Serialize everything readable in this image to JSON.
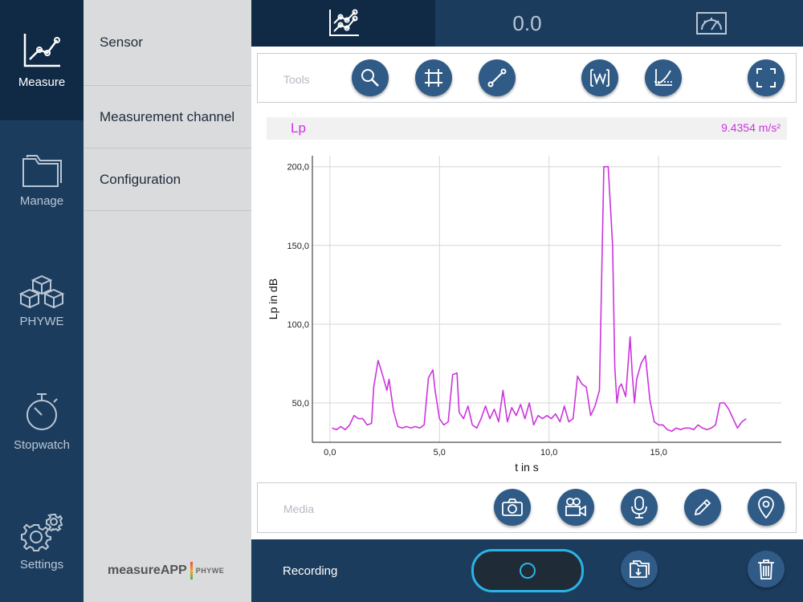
{
  "nav": {
    "items": [
      {
        "label": "Measure",
        "icon": "chart-line-icon",
        "active": true
      },
      {
        "label": "Manage",
        "icon": "folder-icon"
      },
      {
        "label": "PHYWE",
        "icon": "cubes-icon"
      },
      {
        "label": "Stopwatch",
        "icon": "stopwatch-icon"
      },
      {
        "label": "Settings",
        "icon": "gears-icon"
      }
    ]
  },
  "submenu": {
    "items": [
      "Sensor",
      "Measurement channel",
      "Configuration"
    ],
    "brand": "measureAPP",
    "brand_sub": "PHYWE"
  },
  "top_tabs": {
    "graph_icon": "graph-tab-icon",
    "value_display": "0.0",
    "gauge_icon": "gauge-tab-icon"
  },
  "tools": {
    "label": "Tools",
    "buttons": [
      "zoom-icon",
      "crop-icon",
      "line-tool-icon",
      "wave-fit-icon",
      "axes-icon",
      "fullscreen-icon"
    ]
  },
  "channel": {
    "name": "Lp",
    "value": "9.4354 m/s²",
    "color": "#cc33dd"
  },
  "chart_data": {
    "type": "line",
    "xlabel": "t in s",
    "ylabel": "Lp in dB",
    "xlim": [
      -0.8,
      20.6
    ],
    "ylim": [
      25,
      207
    ],
    "xticks": [
      0,
      5,
      10,
      15
    ],
    "xtick_labels": [
      "0,0",
      "5,0",
      "10,0",
      "15,0"
    ],
    "yticks": [
      50,
      100,
      150,
      200
    ],
    "ytick_labels": [
      "50,0",
      "100,0",
      "150,0",
      "200,0"
    ],
    "grid": true,
    "series": [
      {
        "color": "#cc33dd",
        "x": [
          0.1,
          0.3,
          0.5,
          0.7,
          0.9,
          1.1,
          1.3,
          1.5,
          1.7,
          1.9,
          2.0,
          2.2,
          2.4,
          2.6,
          2.7,
          2.9,
          3.1,
          3.3,
          3.5,
          3.7,
          3.9,
          4.1,
          4.3,
          4.5,
          4.7,
          4.8,
          5.0,
          5.2,
          5.4,
          5.6,
          5.8,
          5.9,
          6.1,
          6.3,
          6.5,
          6.7,
          6.9,
          7.1,
          7.3,
          7.5,
          7.7,
          7.9,
          8.1,
          8.3,
          8.5,
          8.7,
          8.9,
          9.1,
          9.3,
          9.5,
          9.7,
          9.9,
          10.1,
          10.3,
          10.5,
          10.7,
          10.9,
          11.1,
          11.3,
          11.5,
          11.7,
          11.9,
          12.1,
          12.3,
          12.5,
          12.7,
          12.9,
          13.0,
          13.1,
          13.2,
          13.3,
          13.5,
          13.7,
          13.8,
          13.9,
          14.0,
          14.2,
          14.4,
          14.6,
          14.8,
          15.0,
          15.2,
          15.4,
          15.6,
          15.8,
          16.0,
          16.2,
          16.4,
          16.6,
          16.8,
          17.0,
          17.2,
          17.4,
          17.6,
          17.8,
          18.0,
          18.2,
          18.4,
          18.6,
          18.8,
          19.0
        ],
        "y": [
          34,
          33,
          35,
          33,
          36,
          42,
          40,
          40,
          36,
          37,
          60,
          77,
          68,
          58,
          65,
          45,
          35,
          34,
          35,
          34,
          35,
          34,
          36,
          66,
          71,
          58,
          40,
          36,
          38,
          68,
          69,
          44,
          40,
          48,
          36,
          34,
          40,
          48,
          40,
          46,
          38,
          58,
          38,
          47,
          42,
          49,
          40,
          50,
          36,
          42,
          40,
          42,
          40,
          43,
          38,
          48,
          38,
          40,
          67,
          62,
          60,
          42,
          48,
          58,
          200,
          200,
          150,
          73,
          50,
          60,
          62,
          54,
          92,
          68,
          50,
          65,
          75,
          80,
          52,
          38,
          36,
          36,
          33,
          32,
          34,
          33,
          34,
          34,
          33,
          36,
          34,
          33,
          34,
          36,
          50,
          50,
          46,
          40,
          34,
          38,
          40
        ]
      }
    ]
  },
  "media": {
    "label": "Media",
    "buttons": [
      "camera-icon",
      "video-icon",
      "microphone-icon",
      "pencil-icon",
      "location-pin-icon"
    ]
  },
  "bottom": {
    "recording_label": "Recording",
    "export_icon": "export-folder-icon",
    "delete_icon": "trash-icon"
  }
}
